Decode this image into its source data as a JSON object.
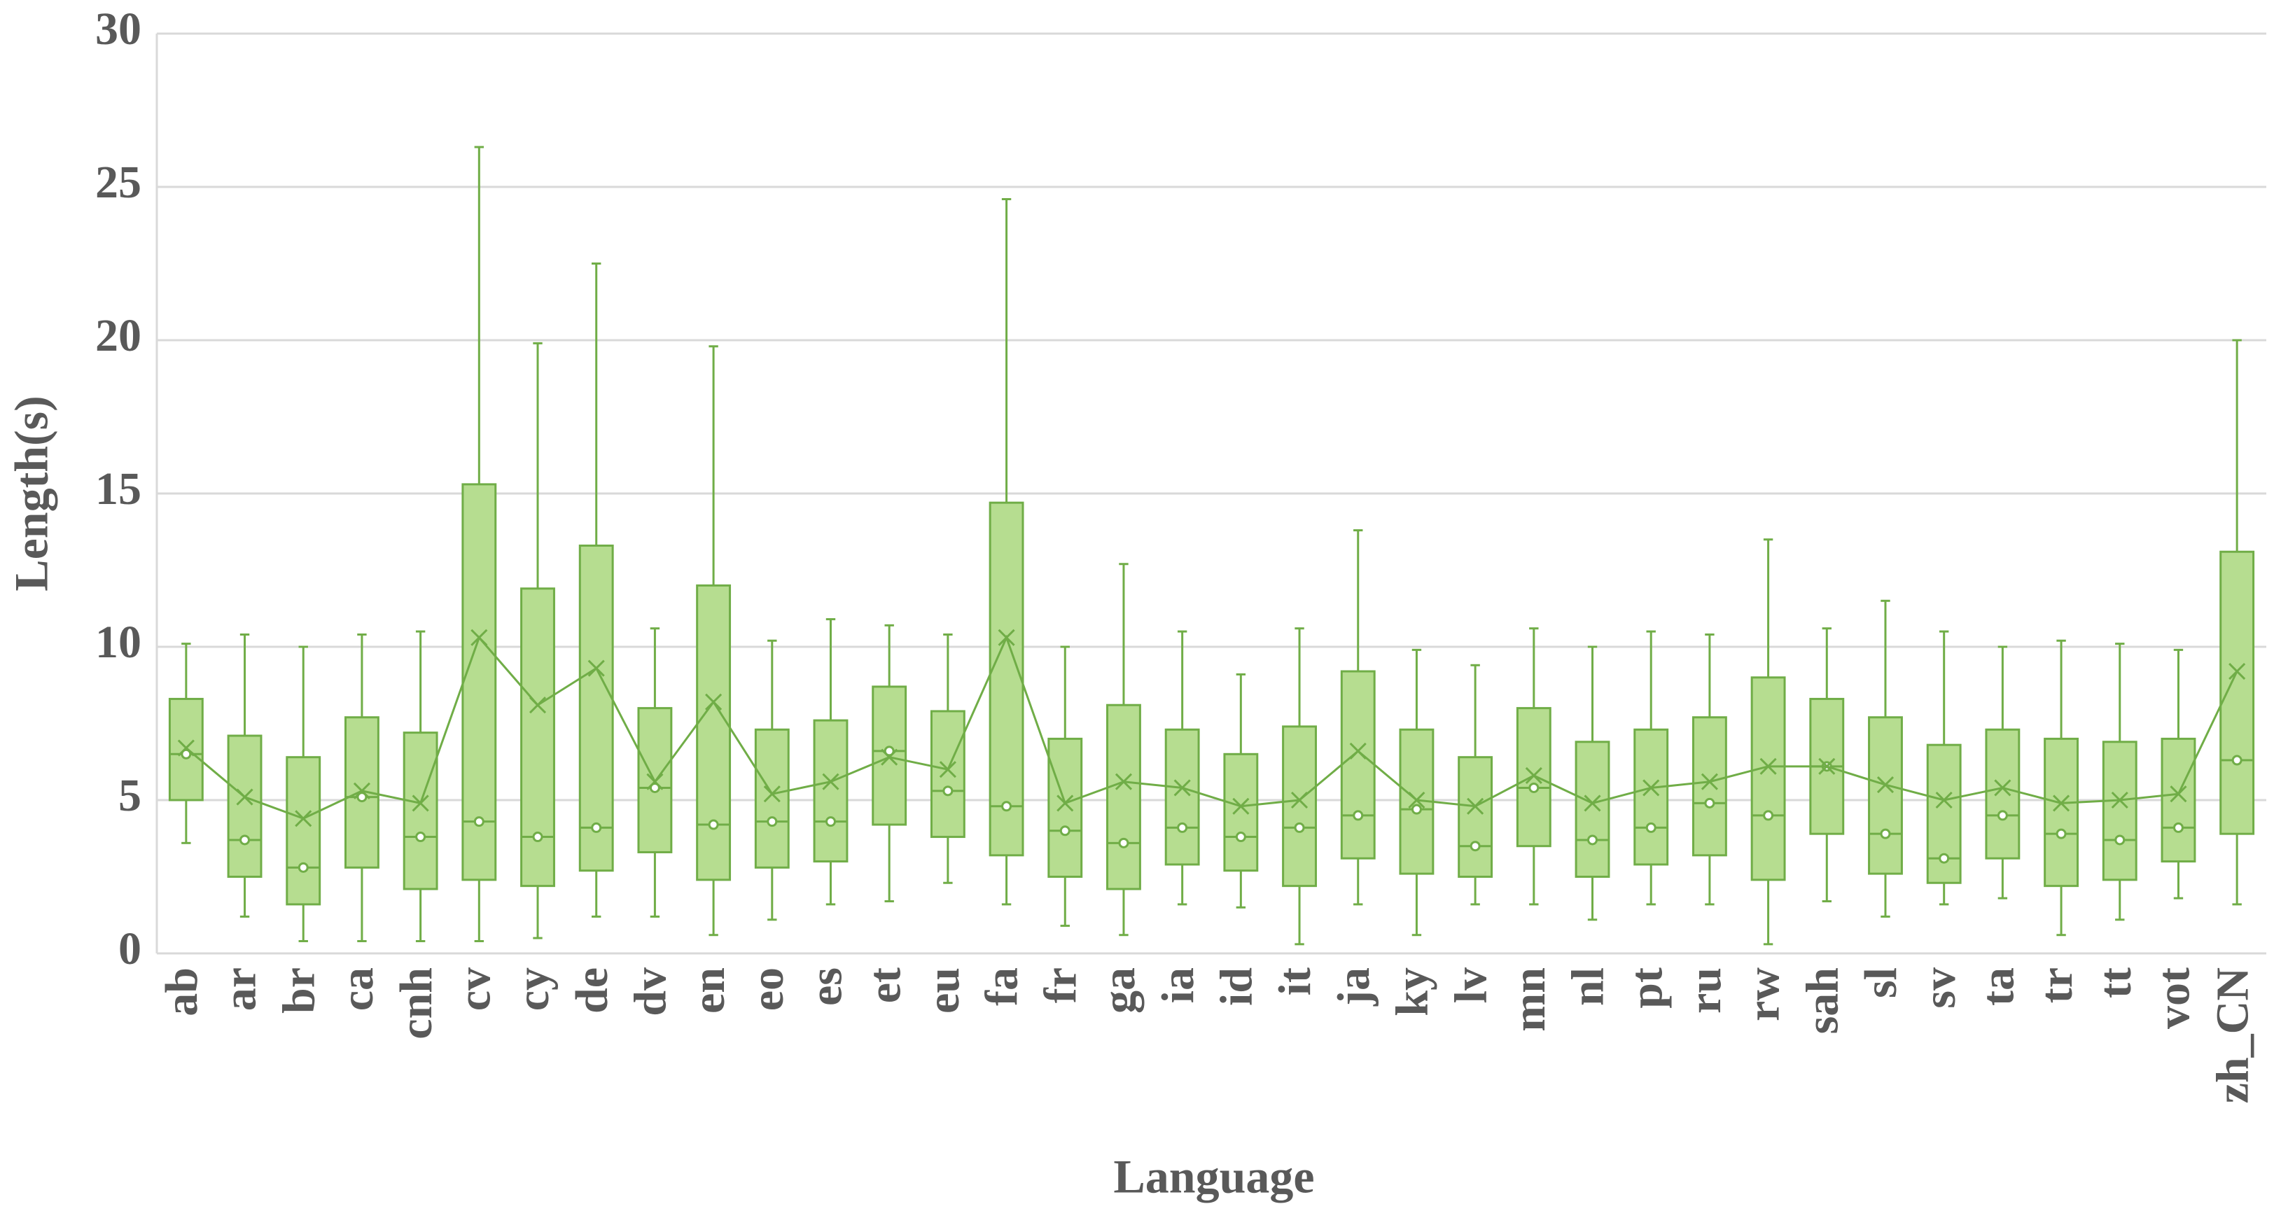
{
  "chart_data": {
    "type": "box",
    "x_label": "Language",
    "y_label": "Length(s)",
    "categories": [
      "ab",
      "ar",
      "br",
      "ca",
      "cnh",
      "cv",
      "cy",
      "de",
      "dv",
      "en",
      "eo",
      "es",
      "et",
      "eu",
      "fa",
      "fr",
      "ga",
      "ia",
      "id",
      "it",
      "ja",
      "ky",
      "lv",
      "mn",
      "nl",
      "pt",
      "ru",
      "rw",
      "sah",
      "sl",
      "sv",
      "ta",
      "tr",
      "tt",
      "vot",
      "zh_CN"
    ],
    "min": [
      3.6,
      1.2,
      0.4,
      0.4,
      0.4,
      0.4,
      0.5,
      1.2,
      1.2,
      0.6,
      1.1,
      1.6,
      1.7,
      2.3,
      1.6,
      0.9,
      0.6,
      1.6,
      1.5,
      0.3,
      1.6,
      0.6,
      1.6,
      1.6,
      1.1,
      1.6,
      1.6,
      0.3,
      1.7,
      1.2,
      1.6,
      1.8,
      0.6,
      1.1,
      1.8,
      1.6
    ],
    "q1": [
      5.0,
      2.5,
      1.6,
      2.8,
      2.1,
      2.4,
      2.2,
      2.7,
      3.3,
      2.4,
      2.8,
      3.0,
      4.2,
      3.8,
      3.2,
      2.5,
      2.1,
      2.9,
      2.7,
      2.2,
      3.1,
      2.6,
      2.5,
      3.5,
      2.5,
      2.9,
      3.2,
      2.4,
      3.9,
      2.6,
      2.3,
      3.1,
      2.2,
      2.4,
      3.0,
      3.9
    ],
    "median": [
      6.5,
      3.7,
      2.8,
      5.1,
      3.8,
      4.3,
      3.8,
      4.1,
      5.4,
      4.2,
      4.3,
      4.3,
      6.6,
      5.3,
      4.8,
      4.0,
      3.6,
      4.1,
      3.8,
      4.1,
      4.5,
      4.7,
      3.5,
      5.4,
      3.7,
      4.1,
      4.9,
      4.5,
      6.1,
      3.9,
      3.1,
      4.5,
      3.9,
      3.7,
      4.1,
      6.3
    ],
    "q3": [
      8.3,
      7.1,
      6.4,
      7.7,
      7.2,
      15.3,
      11.9,
      13.3,
      8.0,
      12.0,
      7.3,
      7.6,
      8.7,
      7.9,
      14.7,
      7.0,
      8.1,
      7.3,
      6.5,
      7.4,
      9.2,
      7.3,
      6.4,
      8.0,
      6.9,
      7.3,
      7.7,
      9.0,
      8.3,
      7.7,
      6.8,
      7.3,
      7.0,
      6.9,
      7.0,
      13.1
    ],
    "max": [
      10.1,
      10.4,
      10.0,
      10.4,
      10.5,
      26.3,
      19.9,
      22.5,
      10.6,
      19.8,
      10.2,
      10.9,
      10.7,
      10.4,
      24.6,
      10.0,
      12.7,
      10.5,
      9.1,
      10.6,
      13.8,
      9.9,
      9.4,
      10.6,
      10.0,
      10.5,
      10.4,
      13.5,
      10.6,
      11.5,
      10.5,
      10.0,
      10.2,
      10.1,
      9.9,
      20.0
    ],
    "mean": [
      6.7,
      5.1,
      4.4,
      5.3,
      4.9,
      10.3,
      8.1,
      9.3,
      5.6,
      8.2,
      5.2,
      5.6,
      6.4,
      6.0,
      10.3,
      4.9,
      5.6,
      5.4,
      4.8,
      5.0,
      6.6,
      5.0,
      4.8,
      5.8,
      4.9,
      5.4,
      5.6,
      6.1,
      6.1,
      5.5,
      5.0,
      5.4,
      4.9,
      5.0,
      5.2,
      9.2
    ],
    "color": "#70ad47",
    "box_fill": "#b6dd90",
    "ylim": [
      0,
      30
    ],
    "yticks": [
      0,
      5,
      10,
      15,
      20,
      25,
      30
    ],
    "grid": true
  }
}
